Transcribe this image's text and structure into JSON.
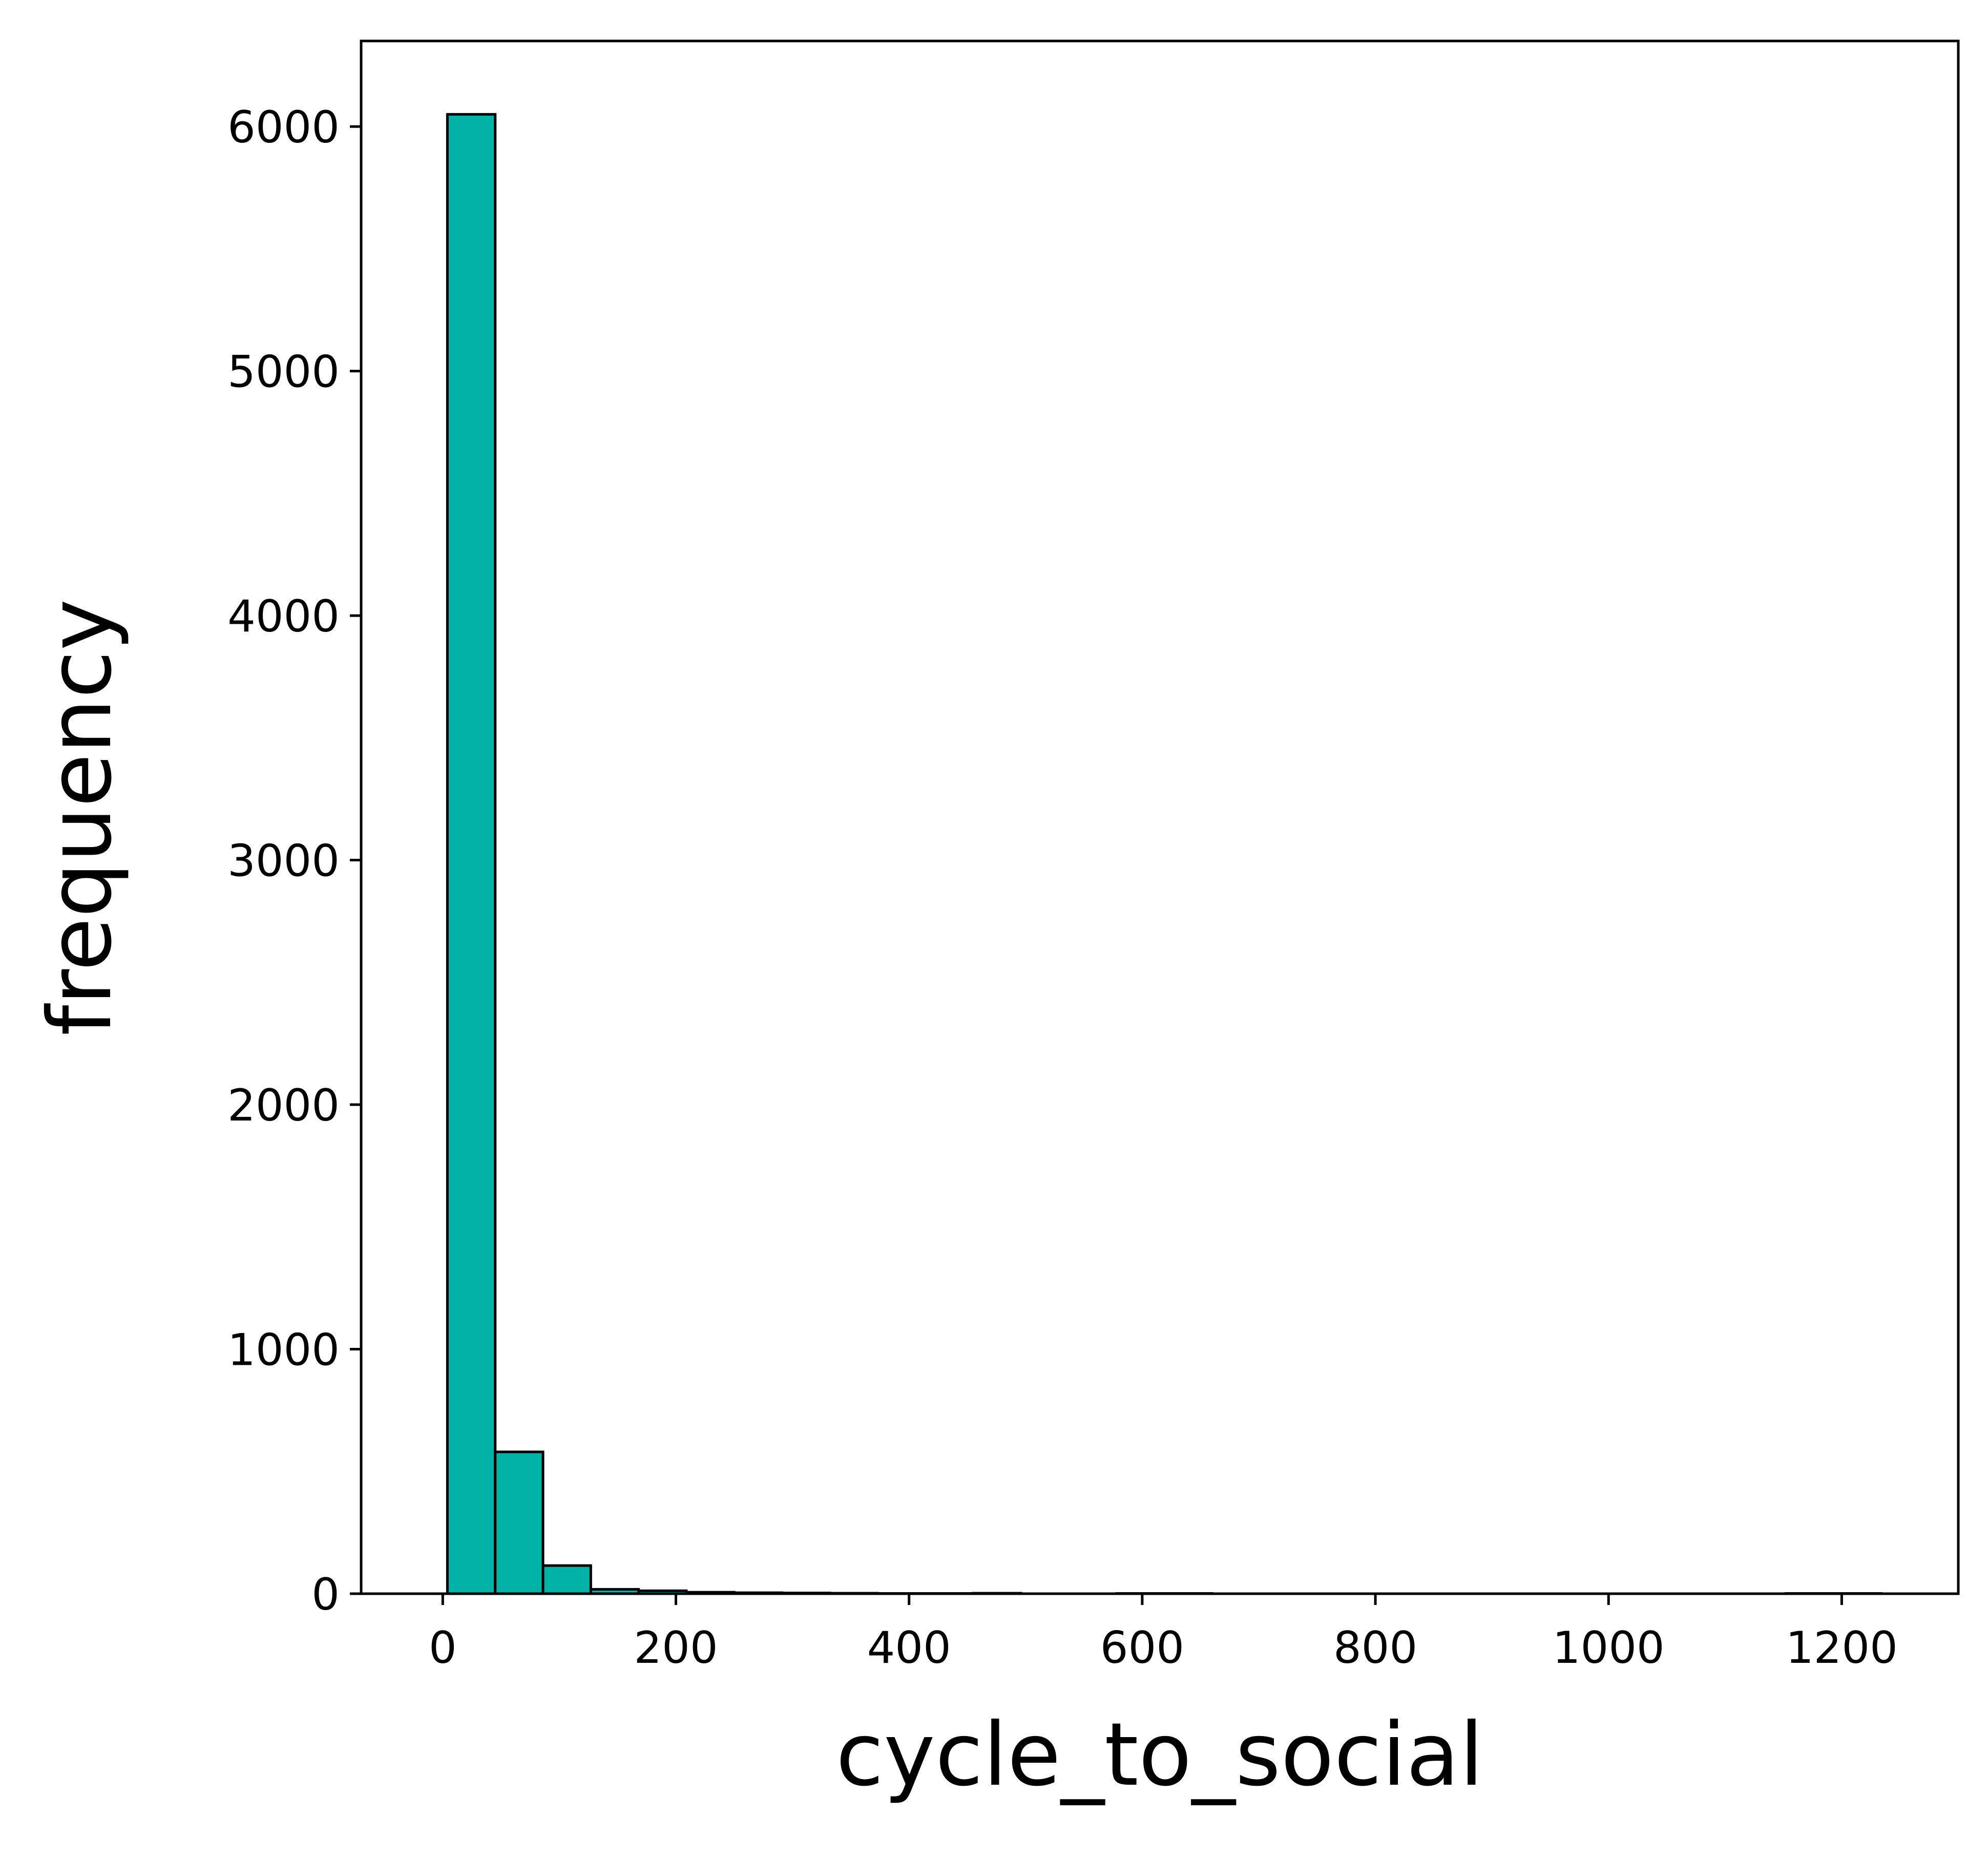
{
  "chart_data": {
    "type": "bar",
    "subtype": "histogram",
    "xlabel": "cycle_to_social",
    "ylabel": "frequency",
    "xlim": [
      -70,
      1300
    ],
    "ylim": [
      0,
      6350
    ],
    "x_ticks": [
      0,
      200,
      400,
      600,
      800,
      1000,
      1200
    ],
    "y_ticks": [
      0,
      1000,
      2000,
      3000,
      4000,
      5000,
      6000
    ],
    "grid": false,
    "legend": "none",
    "colors": {
      "bar_fill": "#00b3a6",
      "bar_edge": "#000000",
      "axes": "#000000",
      "background": "#ffffff"
    },
    "bins": [
      {
        "x0": 4,
        "x1": 45,
        "count": 6050
      },
      {
        "x0": 45,
        "x1": 86,
        "count": 580
      },
      {
        "x0": 86,
        "x1": 127,
        "count": 115
      },
      {
        "x0": 127,
        "x1": 168,
        "count": 18
      },
      {
        "x0": 168,
        "x1": 209,
        "count": 12
      },
      {
        "x0": 209,
        "x1": 250,
        "count": 6
      },
      {
        "x0": 250,
        "x1": 291,
        "count": 4
      },
      {
        "x0": 291,
        "x1": 332,
        "count": 3
      },
      {
        "x0": 332,
        "x1": 373,
        "count": 2
      },
      {
        "x0": 373,
        "x1": 414,
        "count": 1
      },
      {
        "x0": 414,
        "x1": 455,
        "count": 1
      },
      {
        "x0": 455,
        "x1": 496,
        "count": 2
      },
      {
        "x0": 496,
        "x1": 537,
        "count": 0
      },
      {
        "x0": 537,
        "x1": 578,
        "count": 0
      },
      {
        "x0": 578,
        "x1": 619,
        "count": 1
      },
      {
        "x0": 619,
        "x1": 660,
        "count": 1
      },
      {
        "x0": 660,
        "x1": 701,
        "count": 0
      },
      {
        "x0": 701,
        "x1": 742,
        "count": 0
      },
      {
        "x0": 742,
        "x1": 783,
        "count": 0
      },
      {
        "x0": 783,
        "x1": 824,
        "count": 0
      },
      {
        "x0": 824,
        "x1": 865,
        "count": 0
      },
      {
        "x0": 865,
        "x1": 906,
        "count": 0
      },
      {
        "x0": 906,
        "x1": 947,
        "count": 0
      },
      {
        "x0": 947,
        "x1": 988,
        "count": 0
      },
      {
        "x0": 988,
        "x1": 1029,
        "count": 0
      },
      {
        "x0": 1029,
        "x1": 1070,
        "count": 0
      },
      {
        "x0": 1070,
        "x1": 1111,
        "count": 0
      },
      {
        "x0": 1111,
        "x1": 1152,
        "count": 0
      },
      {
        "x0": 1152,
        "x1": 1193,
        "count": 1
      },
      {
        "x0": 1193,
        "x1": 1234,
        "count": 1
      }
    ]
  }
}
